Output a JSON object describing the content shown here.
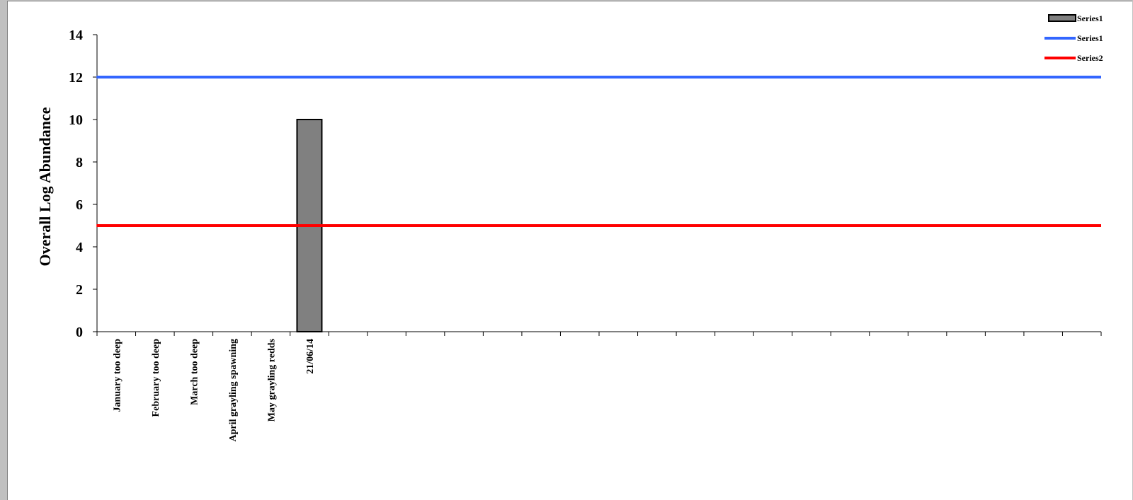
{
  "chart_data": {
    "type": "bar",
    "title": "",
    "xlabel": "",
    "ylabel": "Overall Log Abundance",
    "ylim": [
      0,
      14
    ],
    "yticks": [
      "0",
      "2",
      "4",
      "6",
      "8",
      "10",
      "12",
      "14"
    ],
    "categories": [
      "January too deep",
      "February too deep",
      "March too deep",
      "April grayling spawning",
      "May grayling redds",
      "21/06/14",
      "",
      "",
      "",
      "",
      "",
      "",
      "",
      "",
      "",
      "",
      "",
      "",
      "",
      "",
      "",
      "",
      "",
      "",
      "",
      ""
    ],
    "bar_series": {
      "name": "Series1",
      "values": [
        null,
        null,
        null,
        null,
        null,
        10,
        null,
        null,
        null,
        null,
        null,
        null,
        null,
        null,
        null,
        null,
        null,
        null,
        null,
        null,
        null,
        null,
        null,
        null,
        null,
        null
      ],
      "color": "#808080"
    },
    "line_series": [
      {
        "name": "Series1",
        "value": 12,
        "color": "#3366ff"
      },
      {
        "name": "Series2",
        "value": 5,
        "color": "#ff0000"
      }
    ],
    "grid": false,
    "legend": {
      "position": "top-right",
      "entries": [
        {
          "label": "Series1",
          "kind": "bar",
          "color": "#808080"
        },
        {
          "label": "Series1",
          "kind": "line",
          "color": "#3366ff"
        },
        {
          "label": "Series2",
          "kind": "line",
          "color": "#ff0000"
        }
      ]
    }
  }
}
